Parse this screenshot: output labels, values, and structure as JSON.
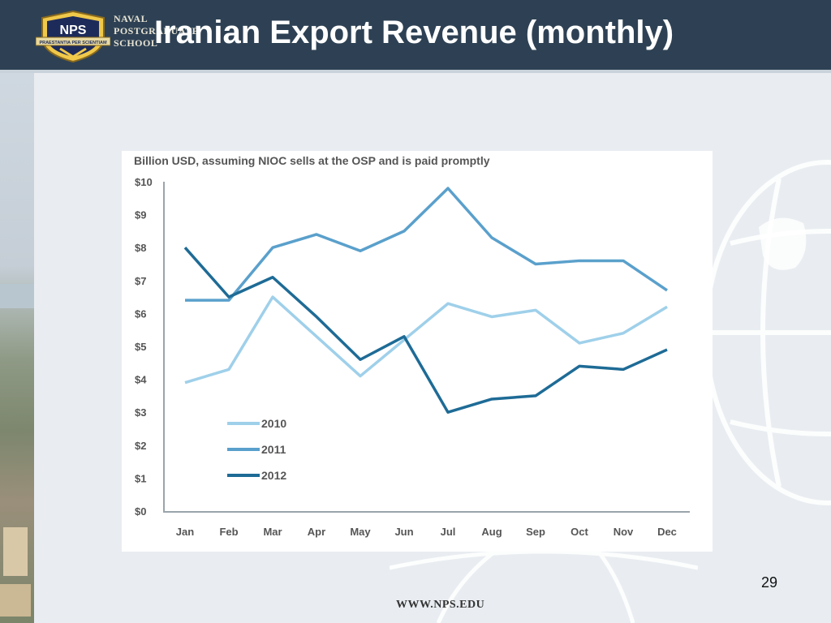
{
  "slide": {
    "title": "Iranian Export Revenue (monthly)",
    "page_number": "29",
    "footer_url": "WWW.NPS.EDU"
  },
  "logo": {
    "badge_text": "NPS",
    "ribbon_text": "PRAESTANTIA PER SCIENTIAM",
    "school_lines": [
      "NAVAL",
      "POSTGRADUATE",
      "SCHOOL"
    ]
  },
  "colors": {
    "header_bg": "#2e4154",
    "series_2010": "#9fd0ea",
    "series_2011": "#5aa0cc",
    "series_2012": "#1e6b96",
    "axis": "#9aa4ab"
  },
  "chart_data": {
    "type": "line",
    "subtitle": "Billion USD, assuming NIOC sells at the OSP and is paid promptly",
    "categories": [
      "Jan",
      "Feb",
      "Mar",
      "Apr",
      "May",
      "Jun",
      "Jul",
      "Aug",
      "Sep",
      "Oct",
      "Nov",
      "Dec"
    ],
    "ylim": [
      0,
      10
    ],
    "yticks": [
      "$0",
      "$1",
      "$2",
      "$3",
      "$4",
      "$5",
      "$6",
      "$7",
      "$8",
      "$9",
      "$10"
    ],
    "grid": false,
    "legend_position": "bottom-left inside plot",
    "series": [
      {
        "name": "2010",
        "color": "#9fd0ea",
        "values": [
          3.9,
          4.3,
          6.5,
          5.3,
          4.1,
          5.2,
          6.3,
          5.9,
          6.1,
          5.1,
          5.4,
          6.2
        ]
      },
      {
        "name": "2011",
        "color": "#5aa0cc",
        "values": [
          6.4,
          6.4,
          8.0,
          8.4,
          7.9,
          8.5,
          9.8,
          8.3,
          7.5,
          7.6,
          7.6,
          6.7
        ]
      },
      {
        "name": "2012",
        "color": "#1e6b96",
        "values": [
          8.0,
          6.5,
          7.1,
          5.9,
          4.6,
          5.3,
          3.0,
          3.4,
          3.5,
          4.4,
          4.3,
          4.9
        ]
      }
    ]
  }
}
